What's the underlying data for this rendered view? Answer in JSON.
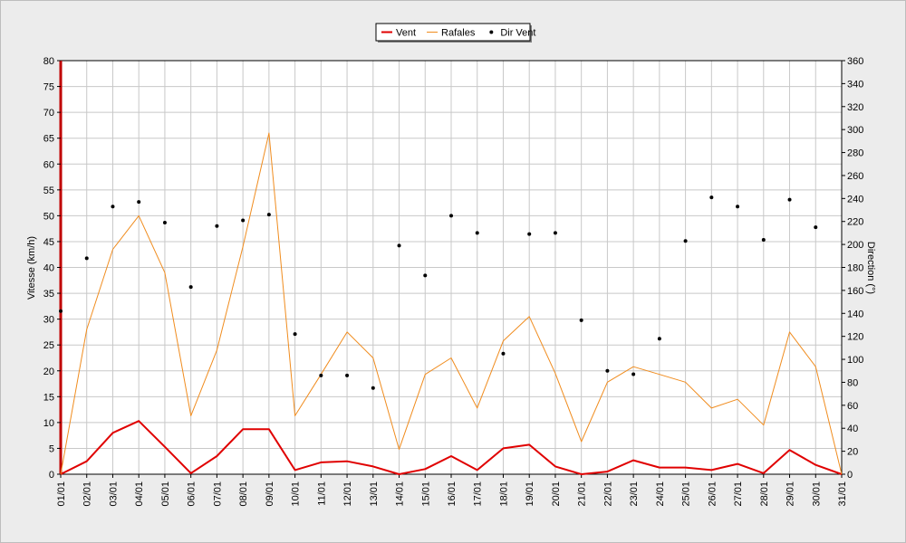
{
  "chart_data": {
    "type": "line",
    "categories": [
      "01/01",
      "02/01",
      "03/01",
      "04/01",
      "05/01",
      "06/01",
      "07/01",
      "08/01",
      "09/01",
      "10/01",
      "11/01",
      "12/01",
      "13/01",
      "14/01",
      "15/01",
      "16/01",
      "17/01",
      "18/01",
      "19/01",
      "20/01",
      "21/01",
      "22/01",
      "23/01",
      "24/01",
      "25/01",
      "26/01",
      "27/01",
      "28/01",
      "29/01",
      "30/01",
      "31/01"
    ],
    "series": [
      {
        "name": "Vent",
        "axis": "left",
        "kind": "line",
        "color": "#e00000",
        "values": [
          0,
          2.5,
          8,
          10.3,
          5.3,
          0.2,
          3.5,
          8.7,
          8.7,
          0.8,
          2.3,
          2.5,
          1.5,
          0,
          1,
          3.5,
          0.8,
          5,
          5.7,
          1.5,
          0,
          0.5,
          2.7,
          1.3,
          1.3,
          0.8,
          2,
          0.2,
          4.7,
          1.8,
          0
        ]
      },
      {
        "name": "Rafales",
        "axis": "left",
        "kind": "line",
        "color": "#f08c1e",
        "values": [
          0,
          28,
          43.5,
          50,
          39,
          11.3,
          24,
          44,
          66,
          11.3,
          19.3,
          27.5,
          22.5,
          4.8,
          19.3,
          22.5,
          12.8,
          25.8,
          30.5,
          19.5,
          6.3,
          17.8,
          20.8,
          19.3,
          17.8,
          12.8,
          14.5,
          9.5,
          27.5,
          20.8,
          0
        ]
      },
      {
        "name": "Dir Vent",
        "axis": "right",
        "kind": "scatter",
        "color": "#000000",
        "values": [
          142,
          188,
          233,
          237,
          219,
          163,
          216,
          221,
          226,
          122,
          86,
          86,
          75,
          199,
          173,
          225,
          210,
          105,
          209,
          210,
          134,
          90,
          87,
          118,
          203,
          241,
          233,
          204,
          239,
          215,
          null
        ]
      }
    ],
    "title": "",
    "xlabel": "",
    "ylabel": "Vitesse (km/h)",
    "ylabel_right": "Direction (°)",
    "ylim": [
      0,
      80
    ],
    "ylim_right": [
      0,
      360
    ],
    "yticks": [
      0,
      5,
      10,
      15,
      20,
      25,
      30,
      35,
      40,
      45,
      50,
      55,
      60,
      65,
      70,
      75,
      80
    ],
    "yticks_right": [
      0,
      20,
      40,
      60,
      80,
      100,
      120,
      140,
      160,
      180,
      200,
      220,
      240,
      260,
      280,
      300,
      320,
      340,
      360
    ],
    "grid": true,
    "legend_position": "top-center",
    "colors": {
      "background": "#ececec",
      "plot_background": "#ffffff",
      "grid": "#c8c8c8",
      "left_axis_accent": "#c00000"
    }
  }
}
